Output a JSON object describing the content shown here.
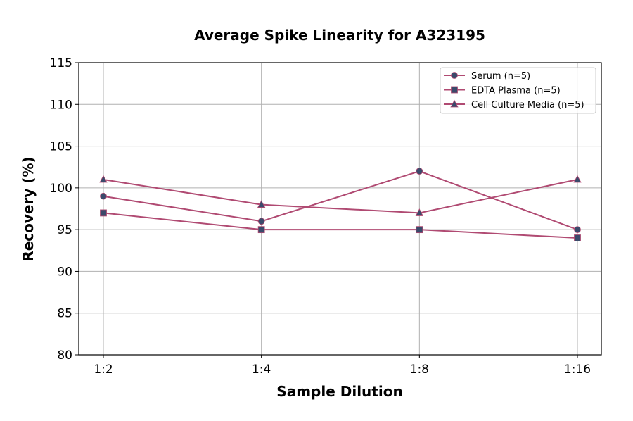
{
  "chart_data": {
    "type": "line",
    "title": "Average Spike Linearity for A323195",
    "xlabel": "Sample Dilution",
    "ylabel": "Recovery (%)",
    "categories": [
      "1:2",
      "1:4",
      "1:8",
      "1:16"
    ],
    "ylim": [
      80,
      115
    ],
    "yticks": [
      80,
      85,
      90,
      95,
      100,
      105,
      110,
      115
    ],
    "grid": true,
    "legend_position": "top-right",
    "line_color": "#b04a72",
    "marker_color": "#3b4a6b",
    "series": [
      {
        "name": "Serum (n=5)",
        "marker": "circle",
        "values": [
          99,
          96,
          102,
          95
        ]
      },
      {
        "name": "EDTA Plasma (n=5)",
        "marker": "square",
        "values": [
          97,
          95,
          95,
          94
        ]
      },
      {
        "name": "Cell Culture Media (n=5)",
        "marker": "triangle",
        "values": [
          101,
          98,
          97,
          101
        ]
      }
    ]
  }
}
